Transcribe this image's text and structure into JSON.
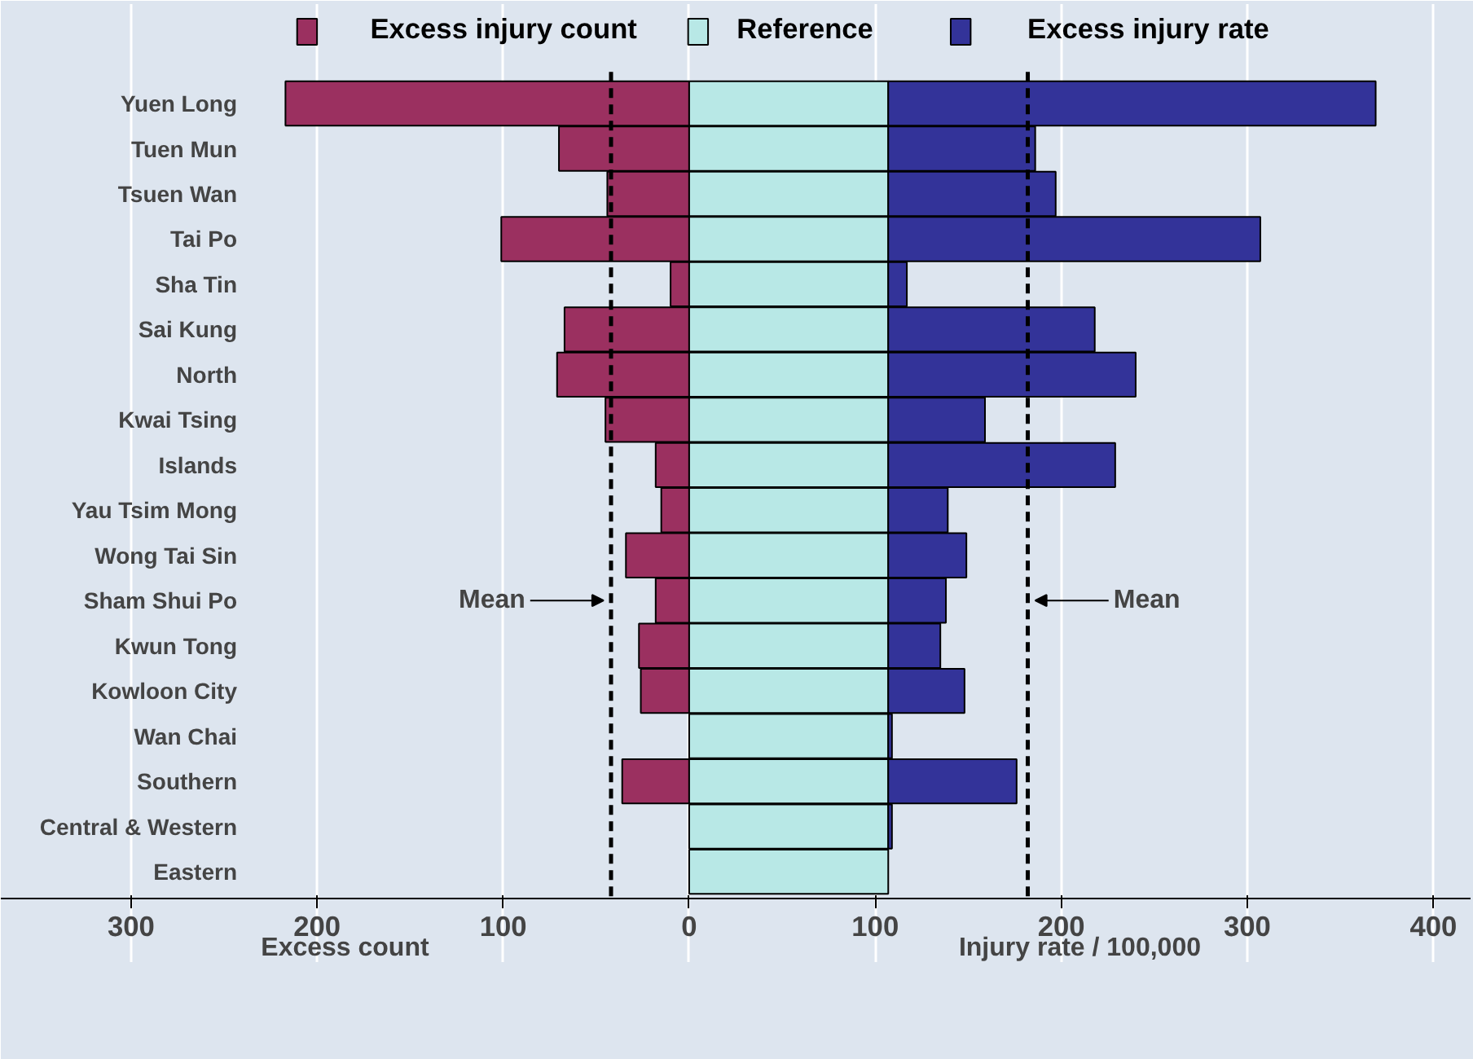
{
  "chart_data": {
    "type": "bar",
    "orientation": "horizontal",
    "stacked": true,
    "categories": [
      "Yuen Long",
      "Tuen Mun",
      "Tsuen Wan",
      "Tai Po",
      "Sha Tin",
      "Sai Kung",
      "North",
      "Kwai Tsing",
      "Islands",
      "Yau Tsim Mong",
      "Wong Tai Sin",
      "Sham Shui Po",
      "Kwun Tong",
      "Kowloon City",
      "Wan Chai",
      "Southern",
      "Central & Western",
      "Eastern"
    ],
    "series": [
      {
        "name": "Excess injury count",
        "color": "#9b3060",
        "values": [
          -217,
          -70,
          -44,
          -101,
          -10,
          -67,
          -71,
          -45,
          -18,
          -15,
          -34,
          -18,
          -27,
          -26,
          null,
          -36,
          null,
          null
        ]
      },
      {
        "name": "Reference",
        "color": "#b8e8e6",
        "values": [
          107,
          107,
          107,
          107,
          107,
          107,
          107,
          107,
          107,
          107,
          107,
          107,
          107,
          107,
          107,
          107,
          107,
          107
        ]
      },
      {
        "name": "Excess injury rate",
        "color": "#333399",
        "values": [
          262,
          79,
          90,
          200,
          10,
          111,
          133,
          52,
          122,
          32,
          42,
          31,
          28,
          41,
          2,
          69,
          2,
          null
        ]
      }
    ],
    "xlim": [
      -370,
      420
    ],
    "xticks": [
      {
        "value": -300,
        "label": "300"
      },
      {
        "value": -200,
        "label": "200"
      },
      {
        "value": -100,
        "label": "100"
      },
      0,
      100,
      200,
      300,
      400
    ],
    "ref_lines": [
      {
        "axis": "x",
        "value": -42,
        "label": "Mean",
        "line_style": "dashed",
        "color": "#000000"
      },
      {
        "axis": "x",
        "value": 182,
        "label": "Mean",
        "line_style": "dashed",
        "color": "#000000"
      }
    ],
    "annotations": [
      "Excess count",
      "Injury rate / 100,000"
    ],
    "grid": "x",
    "legend": "top"
  }
}
